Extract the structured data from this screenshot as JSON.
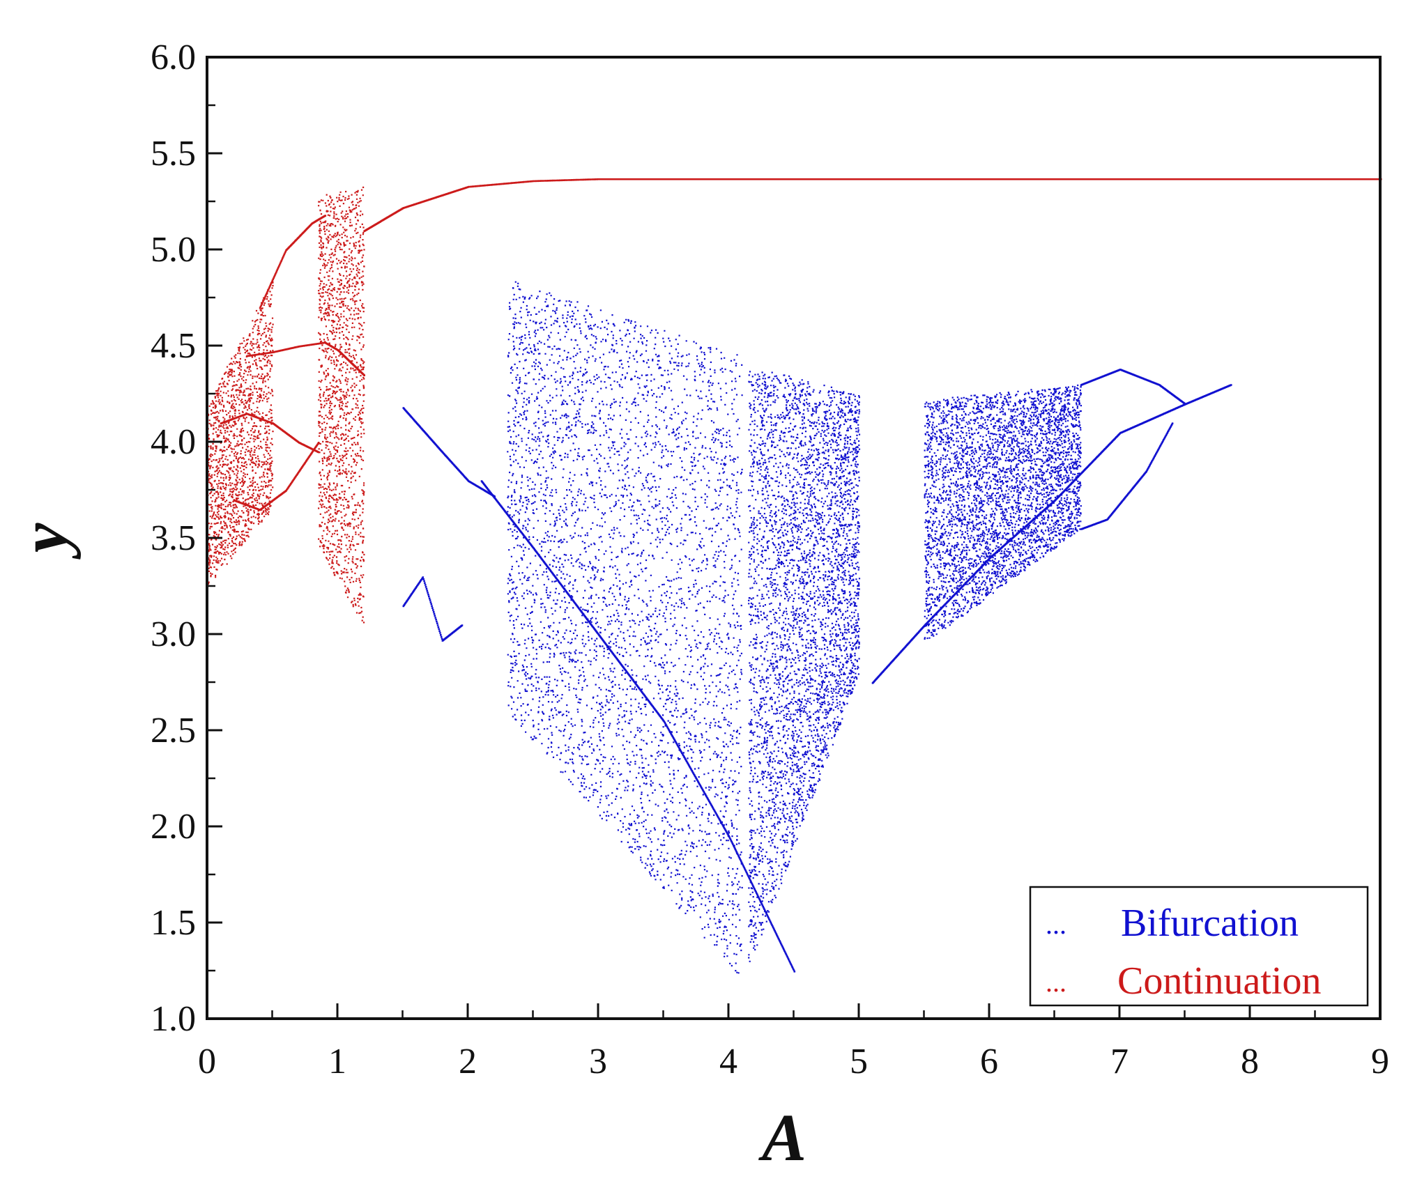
{
  "chart_data": {
    "type": "scatter",
    "xlabel": "A",
    "ylabel": "y",
    "xlim": [
      0,
      9
    ],
    "ylim": [
      1.0,
      6.0
    ],
    "x_ticks": [
      "0",
      "1",
      "2",
      "3",
      "4",
      "5",
      "6",
      "7",
      "8",
      "9"
    ],
    "y_ticks": [
      "1.0",
      "1.5",
      "2.0",
      "2.5",
      "3.0",
      "3.5",
      "4.0",
      "4.5",
      "5.0",
      "5.5",
      "6.0"
    ],
    "grid": false,
    "legend_position": "bottom-right",
    "legend": [
      {
        "marker": "...",
        "label": "Bifurcation",
        "color": "#1010d0"
      },
      {
        "marker": "...",
        "label": "Continuation",
        "color": "#cc1a1a"
      }
    ],
    "series": [
      {
        "name": "Bifurcation",
        "color": "#1010d0",
        "branches": [
          {
            "x": [
              1.5,
              1.8,
              2.0,
              2.2
            ],
            "y": [
              4.18,
              3.95,
              3.8,
              3.72
            ]
          },
          {
            "x": [
              1.5,
              1.65,
              1.8,
              1.95
            ],
            "y": [
              3.15,
              3.3,
              2.97,
              3.05
            ]
          },
          {
            "x": [
              2.1,
              2.5,
              3.0,
              3.5,
              4.0,
              4.5
            ],
            "y": [
              3.8,
              3.45,
              3.0,
              2.55,
              1.95,
              1.25
            ]
          },
          {
            "x": [
              5.1,
              5.5,
              6.0,
              6.5,
              7.0,
              7.5,
              7.85
            ],
            "y": [
              2.75,
              3.05,
              3.4,
              3.7,
              4.05,
              4.2,
              4.3
            ]
          },
          {
            "x": [
              6.7,
              7.0,
              7.3,
              7.5
            ],
            "y": [
              4.3,
              4.38,
              4.3,
              4.2
            ]
          },
          {
            "x": [
              6.7,
              6.9,
              7.2,
              7.4
            ],
            "y": [
              3.55,
              3.6,
              3.85,
              4.1
            ]
          }
        ],
        "chaotic_bands": [
          {
            "x_range": [
              2.3,
              4.1
            ],
            "y_top": [
              4.85,
              4.45
            ],
            "y_bottom": [
              2.6,
              1.2
            ]
          },
          {
            "x_range": [
              4.15,
              5.0
            ],
            "y_top": [
              4.4,
              4.25
            ],
            "y_bottom": [
              1.25,
              2.8
            ]
          },
          {
            "x_range": [
              5.5,
              6.7
            ],
            "y_top": [
              4.22,
              4.3
            ],
            "y_bottom": [
              2.95,
              3.55
            ]
          }
        ]
      },
      {
        "name": "Continuation",
        "color": "#cc1a1a",
        "branches": [
          {
            "x": [
              1.2,
              1.5,
              2.0,
              2.5,
              3.0,
              4.0,
              5.0,
              6.0,
              7.0,
              8.0,
              9.0
            ],
            "y": [
              5.1,
              5.22,
              5.33,
              5.36,
              5.37,
              5.37,
              5.37,
              5.37,
              5.37,
              5.37,
              5.37
            ]
          },
          {
            "x": [
              0.4,
              0.6,
              0.8,
              0.9
            ],
            "y": [
              4.7,
              5.0,
              5.14,
              5.18
            ]
          },
          {
            "x": [
              0.3,
              0.5,
              0.7,
              0.9,
              1.0
            ],
            "y": [
              4.45,
              4.47,
              4.5,
              4.52,
              4.48
            ]
          },
          {
            "x": [
              0.1,
              0.3,
              0.5,
              0.7,
              0.85
            ],
            "y": [
              4.1,
              4.15,
              4.1,
              4.0,
              3.95
            ]
          },
          {
            "x": [
              0.2,
              0.4,
              0.6,
              0.85
            ],
            "y": [
              3.7,
              3.65,
              3.75,
              4.0
            ]
          },
          {
            "x": [
              1.0,
              1.2
            ],
            "y": [
              4.48,
              4.35
            ]
          }
        ],
        "chaotic_bands": [
          {
            "x_range": [
              0.0,
              0.5
            ],
            "y_top": [
              4.2,
              4.85
            ],
            "y_bottom": [
              3.25,
              3.65
            ]
          },
          {
            "x_range": [
              0.85,
              1.2
            ],
            "y_top": [
              5.28,
              5.33
            ],
            "y_bottom": [
              3.45,
              3.05
            ]
          }
        ]
      }
    ]
  }
}
